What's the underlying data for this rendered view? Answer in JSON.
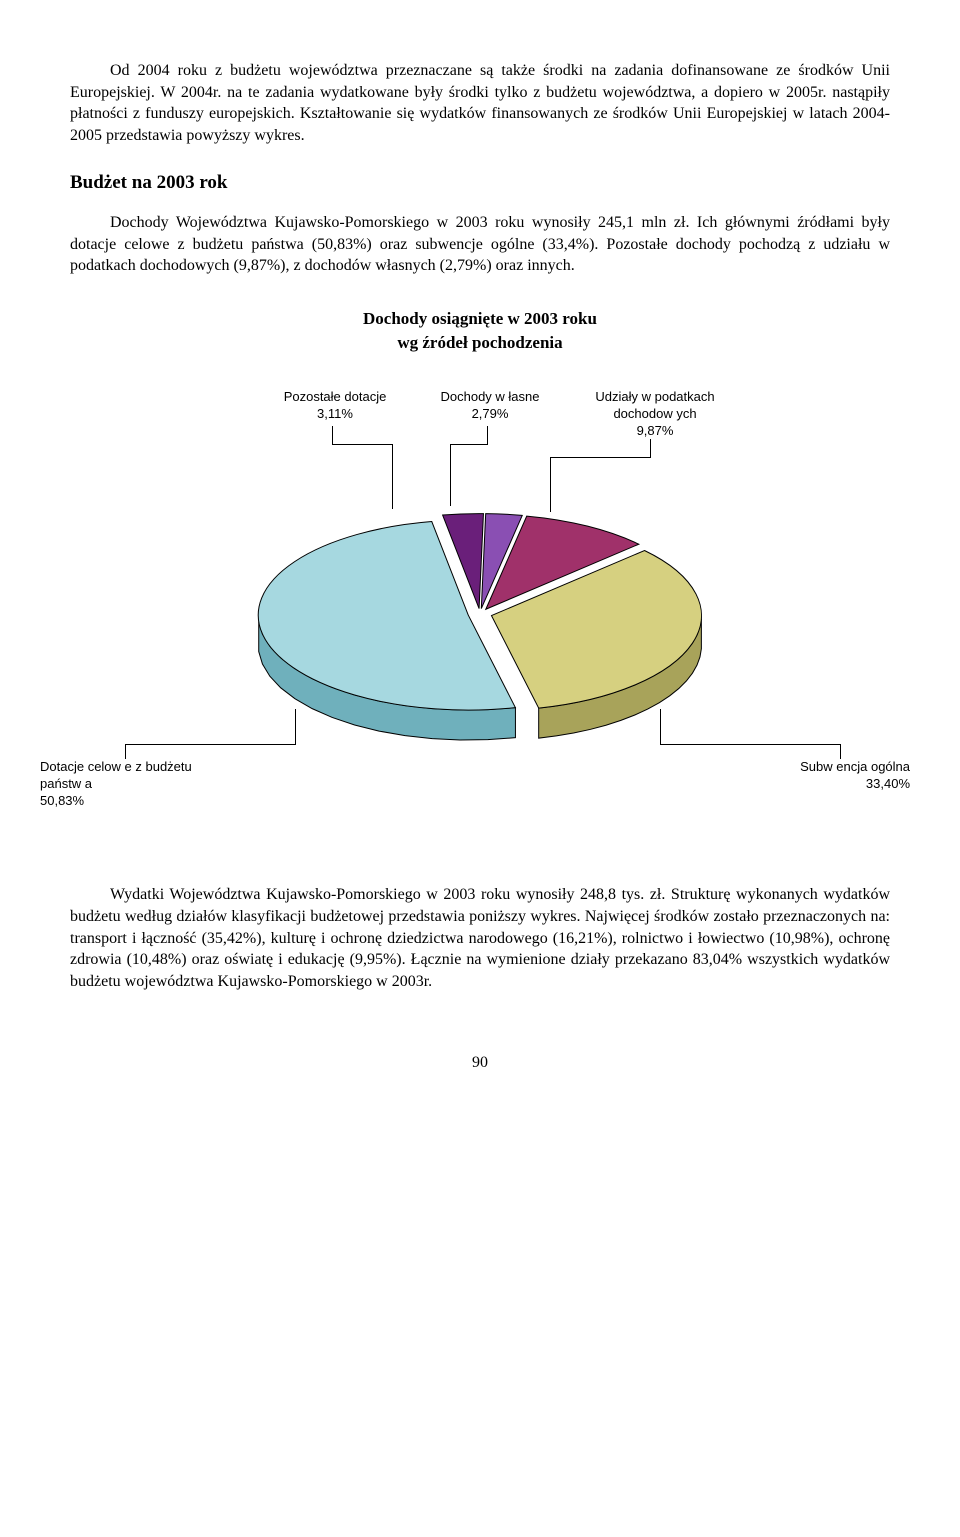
{
  "para1": "Od 2004 roku z budżetu województwa przeznaczane są także środki na zadania dofinansowane ze środków Unii Europejskiej. W 2004r. na te zadania wydatkowane były środki tylko z budżetu województwa, a dopiero w 2005r. nastąpiły płatności z funduszy europejskich. Kształtowanie się wydatków finansowanych ze środków Unii Europejskiej w latach 2004-2005 przedstawia powyższy wykres.",
  "heading1": "Budżet na 2003 rok",
  "para2": "Dochody Województwa Kujawsko-Pomorskiego w 2003 roku wynosiły 245,1 mln zł. Ich głównymi źródłami były dotacje celowe z budżetu państwa (50,83%) oraz subwencje ogólne (33,4%). Pozostałe dochody pochodzą z udziału w podatkach dochodowych (9,87%), z dochodów własnych (2,79%) oraz innych.",
  "chart": {
    "type": "pie-3d",
    "title_line1": "Dochody osiągnięte w 2003 roku",
    "title_line2": "wg źródeł pochodzenia",
    "slices": [
      {
        "label_l1": "Dotacje celow e z budżetu",
        "label_l2": "państw a",
        "value": "50,83%",
        "color": "#a6d8e0",
        "side_color": "#6fb0bc"
      },
      {
        "label_l1": "Pozostałe dotacje",
        "label_l2": "",
        "value": "3,11%",
        "color": "#6a1f7a",
        "side_color": "#4a1555"
      },
      {
        "label_l1": "Dochody w łasne",
        "label_l2": "",
        "value": "2,79%",
        "color": "#8a4fb3",
        "side_color": "#5c3578"
      },
      {
        "label_l1": "Udziały w podatkach",
        "label_l2": "dochodow ych",
        "value": "9,87%",
        "color": "#a0316a",
        "side_color": "#6d2148"
      },
      {
        "label_l1": "Subw encja ogólna",
        "label_l2": "",
        "value": "33,40%",
        "color": "#d6d080",
        "side_color": "#a8a35a"
      }
    ],
    "label_fontsize": 13,
    "label_fontfamily": "Arial",
    "background_color": "#ffffff",
    "border_color": "#000000",
    "depth": 30
  },
  "para3": "Wydatki Województwa Kujawsko-Pomorskiego w 2003 roku wynosiły 248,8 tys. zł. Strukturę wykonanych wydatków budżetu według działów klasyfikacji budżetowej przedstawia poniższy wykres. Najwięcej środków zostało przeznaczonych na: transport i łączność (35,42%), kulturę i ochronę dziedzictwa narodowego (16,21%), rolnictwo i łowiectwo (10,98%), ochronę zdrowia (10,48%) oraz oświatę i edukację (9,95%). Łącznie na wymienione działy przekazano 83,04% wszystkich wydatków budżetu województwa Kujawsko-Pomorskiego w 2003r.",
  "page_number": "90"
}
